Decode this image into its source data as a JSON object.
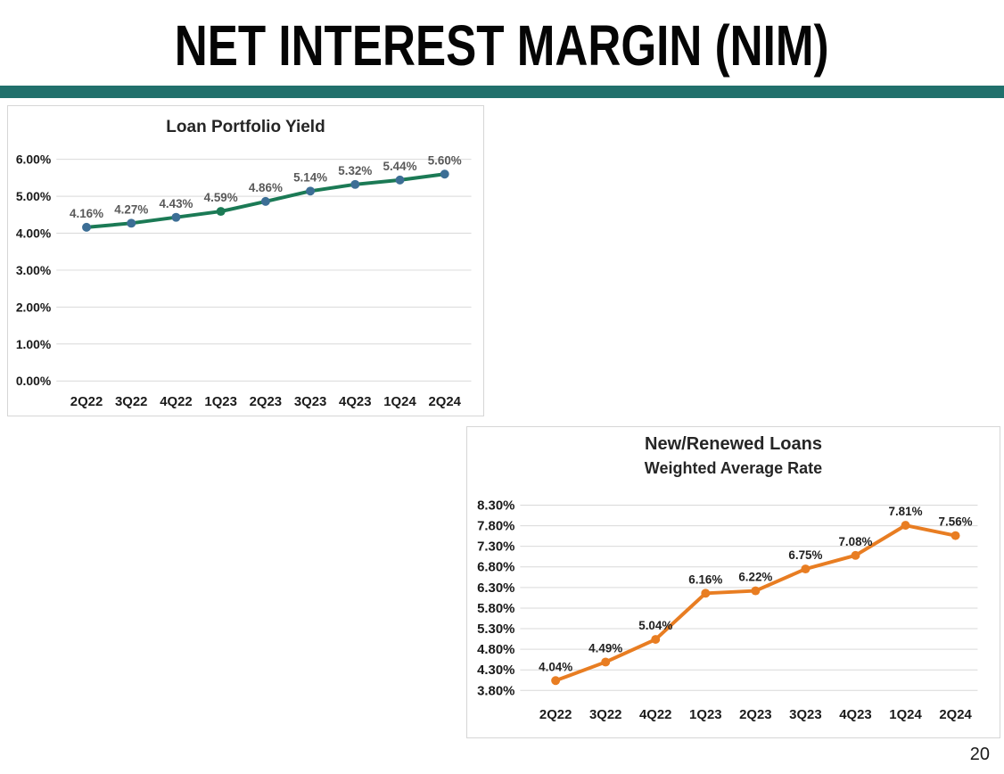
{
  "slide": {
    "title": "NET INTEREST MARGIN (NIM)",
    "page_number": "20",
    "accent_bar_color": "#21706C"
  },
  "chart_data": [
    {
      "type": "line",
      "title": "Loan Portfolio Yield",
      "categories": [
        "2Q22",
        "3Q22",
        "4Q22",
        "1Q23",
        "2Q23",
        "3Q23",
        "4Q23",
        "1Q24",
        "2Q24"
      ],
      "values": [
        4.16,
        4.27,
        4.43,
        4.59,
        4.86,
        5.14,
        5.32,
        5.44,
        5.6
      ],
      "point_labels": [
        "4.16%",
        "4.27%",
        "4.43%",
        "4.59%",
        "4.86%",
        "5.14%",
        "5.32%",
        "5.44%",
        "5.60%"
      ],
      "y_ticks": [
        {
          "label": "6.00%",
          "value": 6.0
        },
        {
          "label": "5.00%",
          "value": 5.0
        },
        {
          "label": "4.00%",
          "value": 4.0
        },
        {
          "label": "3.00%",
          "value": 3.0
        },
        {
          "label": "2.00%",
          "value": 2.0
        },
        {
          "label": "1.00%",
          "value": 1.0
        },
        {
          "label": "0.00%",
          "value": 0.0
        }
      ],
      "ylim": [
        0.0,
        6.0
      ],
      "grid": true,
      "legend": "none",
      "line_color": "#1B7A55",
      "marker_color": "#3C6E95",
      "marker_overrides": {
        "3": "#1B7A55"
      },
      "label_color": "#595959",
      "axis_text_color": "#1a1a1a",
      "grid_color": "#d9d9d9"
    },
    {
      "type": "line",
      "title": "New/Renewed Loans",
      "subtitle": "Weighted Average Rate",
      "categories": [
        "2Q22",
        "3Q22",
        "4Q22",
        "1Q23",
        "2Q23",
        "3Q23",
        "4Q23",
        "1Q24",
        "2Q24"
      ],
      "values": [
        4.04,
        4.49,
        5.04,
        6.16,
        6.22,
        6.75,
        7.08,
        7.81,
        7.56
      ],
      "point_labels": [
        "4.04%",
        "4.49%",
        "5.04%",
        "6.16%",
        "6.22%",
        "6.75%",
        "7.08%",
        "7.81%",
        "7.56%"
      ],
      "y_ticks": [
        {
          "label": "8.30%",
          "value": 8.3
        },
        {
          "label": "7.80%",
          "value": 7.8
        },
        {
          "label": "7.30%",
          "value": 7.3
        },
        {
          "label": "6.80%",
          "value": 6.8
        },
        {
          "label": "6.30%",
          "value": 6.3
        },
        {
          "label": "5.80%",
          "value": 5.8
        },
        {
          "label": "5.30%",
          "value": 5.3
        },
        {
          "label": "4.80%",
          "value": 4.8
        },
        {
          "label": "4.30%",
          "value": 4.3
        },
        {
          "label": "3.80%",
          "value": 3.8
        }
      ],
      "ylim": [
        3.8,
        8.3
      ],
      "grid": true,
      "legend": "none",
      "line_color": "#E87D22",
      "marker_color": "#E87D22",
      "marker_overrides": {},
      "label_color": "#1f1f1f",
      "axis_text_color": "#1a1a1a",
      "grid_color": "#d9d9d9"
    }
  ]
}
